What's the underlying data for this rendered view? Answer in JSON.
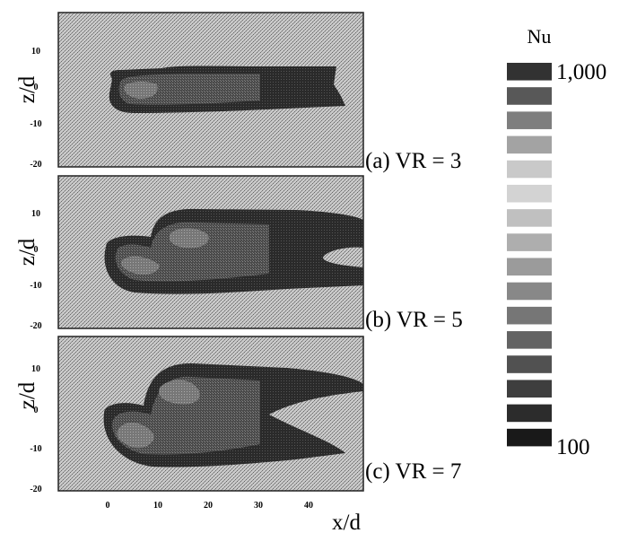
{
  "chart_data": [
    {
      "type": "heatmap",
      "panel_label": "(a) VR = 3",
      "ylabel": "z/d",
      "yticks": [
        10,
        0,
        -10,
        -20
      ],
      "ylim": [
        -20,
        20
      ],
      "xlim": [
        -10,
        50
      ],
      "plume": {
        "x": [
          -0.5,
          48
        ],
        "z": [
          -7,
          5
        ]
      }
    },
    {
      "type": "heatmap",
      "panel_label": "(b) VR = 5",
      "ylabel": "z/d",
      "yticks": [
        10,
        0,
        -10,
        -20
      ],
      "ylim": [
        -20,
        20
      ],
      "xlim": [
        -10,
        50
      ],
      "plume": {
        "x": [
          -0.5,
          50
        ],
        "z": [
          -10,
          10
        ]
      }
    },
    {
      "type": "heatmap",
      "panel_label": "(c) VR = 7",
      "ylabel": "z/d",
      "xlabel": "x/d",
      "yticks": [
        10,
        0,
        -10,
        -20
      ],
      "xticks": [
        0,
        10,
        20,
        30,
        40
      ],
      "ylim": [
        -20,
        20
      ],
      "xlim": [
        -10,
        50
      ],
      "plume": {
        "x": [
          -0.5,
          50
        ],
        "z": [
          -14,
          12
        ]
      }
    }
  ],
  "colorbar": {
    "title": "Nu",
    "max_label": "1,000",
    "min_label": "100",
    "levels": 16,
    "range": [
      100,
      1000
    ]
  },
  "colors": {
    "background_speckle": "#b8b8b8",
    "plume_dark": "#1e1e1e"
  }
}
